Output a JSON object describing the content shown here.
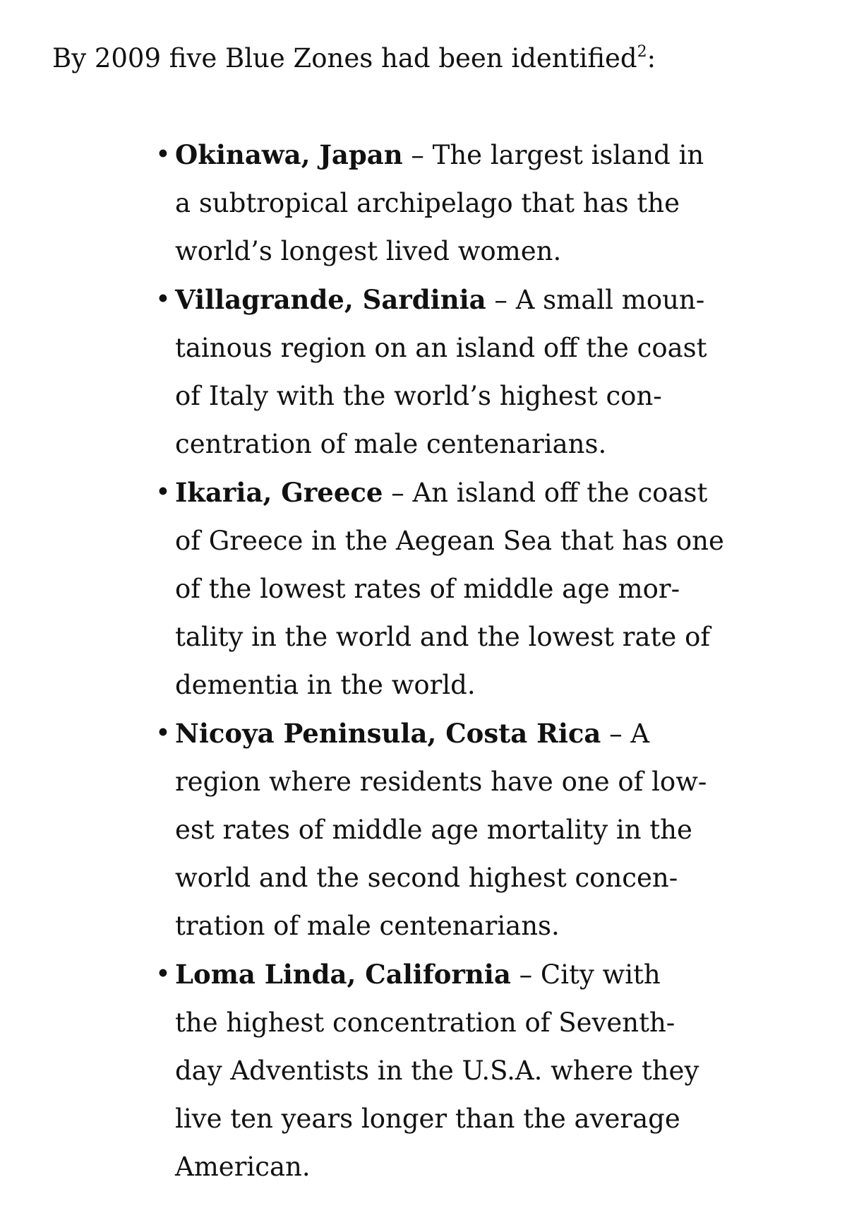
{
  "intro": {
    "text": "By 2009 five Blue Zones had been identified",
    "footnote": "2",
    "suffix": ":"
  },
  "zones": [
    {
      "name": "Okinawa, Japan",
      "first": " – The largest island in",
      "lines": [
        "a subtropical archipelago that has the",
        "world’s longest lived women."
      ]
    },
    {
      "name": "Villagrande, Sardinia",
      "first": " – A small moun-",
      "lines": [
        "tainous region on an island off the coast",
        "of Italy with the world’s highest con-",
        "centration of male centenarians."
      ]
    },
    {
      "name": "Ikaria, Greece",
      "first": " – An island off the coast",
      "lines": [
        "of Greece in the Aegean Sea that has one",
        "of the lowest rates of middle age mor-",
        "tality in the world and the lowest rate of",
        "dementia in the world."
      ]
    },
    {
      "name": "Nicoya Peninsula, Costa Rica",
      "first": " – A",
      "lines": [
        "region where residents have one of low-",
        "est rates of middle age mortality in the",
        "world and the second highest concen-",
        "tration of male centenarians."
      ]
    },
    {
      "name": "Loma Linda, California",
      "first": " – City with",
      "lines": [
        "the highest concentration of Seventh-",
        "day Adventists in the U.S.A. where they",
        "live ten years longer than the average",
        "American."
      ]
    }
  ]
}
